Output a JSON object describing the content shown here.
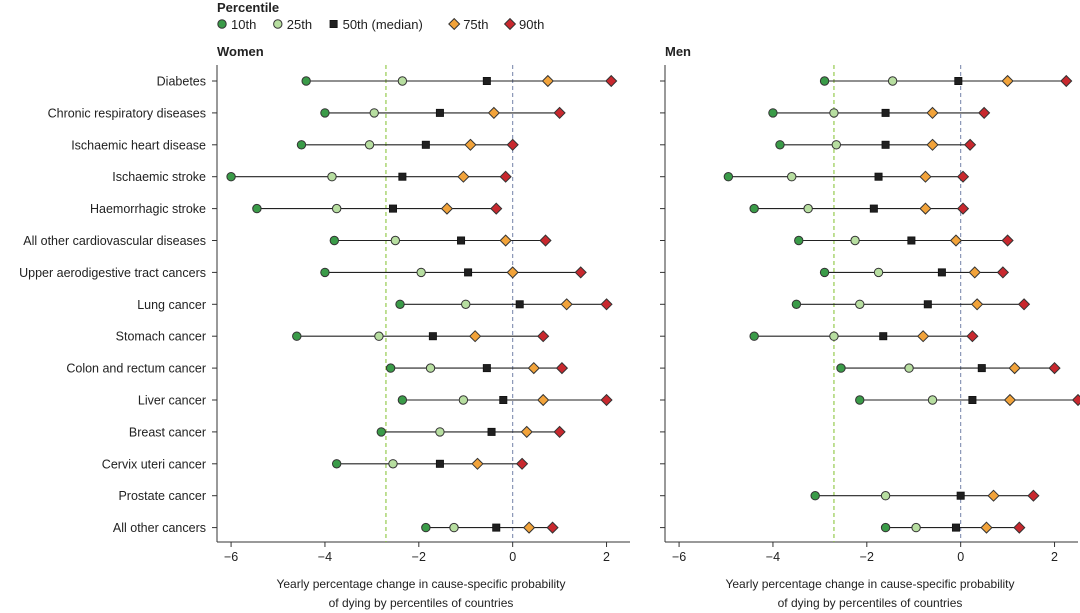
{
  "legend": {
    "title": "Percentile",
    "items": [
      {
        "key": "p10",
        "label": "10th",
        "shape": "circle",
        "color": "#3a9b48"
      },
      {
        "key": "p25",
        "label": "25th",
        "shape": "circle",
        "color": "#b7dea0"
      },
      {
        "key": "p50",
        "label": "50th (median)",
        "shape": "square",
        "color": "#1f1f1f"
      },
      {
        "key": "p75",
        "label": "75th",
        "shape": "diamond",
        "color": "#f2a33a"
      },
      {
        "key": "p90",
        "label": "90th",
        "shape": "diamond",
        "color": "#c8282e"
      }
    ]
  },
  "chart_data": {
    "type": "dot-range",
    "xlabel_line1": "Yearly percentage change in cause-specific probability",
    "xlabel_line2": "of dying by percentiles of countries",
    "xlim": [
      -6.3,
      2.5
    ],
    "xticks": [
      -6,
      -4,
      -2,
      0,
      2
    ],
    "xtick_labels": [
      "−6",
      "−4",
      "−2",
      "0",
      "2"
    ],
    "reference_lines": [
      {
        "x": 0,
        "style": "dashed",
        "color": "#7f8db0"
      },
      {
        "x": -2.7,
        "style": "dashed",
        "color": "#8cc63f"
      }
    ],
    "categories": [
      "Diabetes",
      "Chronic respiratory diseases",
      "Ischaemic heart disease",
      "Ischaemic stroke",
      "Haemorrhagic stroke",
      "All other cardiovascular diseases",
      "Upper aerodigestive tract cancers",
      "Lung cancer",
      "Stomach cancer",
      "Colon and rectum cancer",
      "Liver cancer",
      "Breast cancer",
      "Cervix uteri cancer",
      "Prostate cancer",
      "All other cancers"
    ],
    "panels": [
      {
        "title": "Women",
        "rows": [
          {
            "p10": -4.4,
            "p25": -2.35,
            "p50": -0.55,
            "p75": 0.75,
            "p90": 2.1
          },
          {
            "p10": -4.0,
            "p25": -2.95,
            "p50": -1.55,
            "p75": -0.4,
            "p90": 1.0
          },
          {
            "p10": -4.5,
            "p25": -3.05,
            "p50": -1.85,
            "p75": -0.9,
            "p90": 0.0
          },
          {
            "p10": -6.0,
            "p25": -3.85,
            "p50": -2.35,
            "p75": -1.05,
            "p90": -0.15
          },
          {
            "p10": -5.45,
            "p25": -3.75,
            "p50": -2.55,
            "p75": -1.4,
            "p90": -0.35
          },
          {
            "p10": -3.8,
            "p25": -2.5,
            "p50": -1.1,
            "p75": -0.15,
            "p90": 0.7
          },
          {
            "p10": -4.0,
            "p25": -1.95,
            "p50": -0.95,
            "p75": 0.0,
            "p90": 1.45
          },
          {
            "p10": -2.4,
            "p25": -1.0,
            "p50": 0.15,
            "p75": 1.15,
            "p90": 2.0
          },
          {
            "p10": -4.6,
            "p25": -2.85,
            "p50": -1.7,
            "p75": -0.8,
            "p90": 0.65
          },
          {
            "p10": -2.6,
            "p25": -1.75,
            "p50": -0.55,
            "p75": 0.45,
            "p90": 1.05
          },
          {
            "p10": -2.35,
            "p25": -1.05,
            "p50": -0.2,
            "p75": 0.65,
            "p90": 2.0
          },
          {
            "p10": -2.8,
            "p25": -1.55,
            "p50": -0.45,
            "p75": 0.3,
            "p90": 1.0
          },
          {
            "p10": -3.75,
            "p25": -2.55,
            "p50": -1.55,
            "p75": -0.75,
            "p90": 0.2
          },
          null,
          {
            "p10": -1.85,
            "p25": -1.25,
            "p50": -0.35,
            "p75": 0.35,
            "p90": 0.85
          }
        ]
      },
      {
        "title": "Men",
        "rows": [
          {
            "p10": -2.9,
            "p25": -1.45,
            "p50": -0.05,
            "p75": 1.0,
            "p90": 2.25
          },
          {
            "p10": -4.0,
            "p25": -2.7,
            "p50": -1.6,
            "p75": -0.6,
            "p90": 0.5
          },
          {
            "p10": -3.85,
            "p25": -2.65,
            "p50": -1.6,
            "p75": -0.6,
            "p90": 0.2
          },
          {
            "p10": -4.95,
            "p25": -3.6,
            "p50": -1.75,
            "p75": -0.75,
            "p90": 0.05
          },
          {
            "p10": -4.4,
            "p25": -3.25,
            "p50": -1.85,
            "p75": -0.75,
            "p90": 0.05
          },
          {
            "p10": -3.45,
            "p25": -2.25,
            "p50": -1.05,
            "p75": -0.1,
            "p90": 1.0
          },
          {
            "p10": -2.9,
            "p25": -1.75,
            "p50": -0.4,
            "p75": 0.3,
            "p90": 0.9
          },
          {
            "p10": -3.5,
            "p25": -2.15,
            "p50": -0.7,
            "p75": 0.35,
            "p90": 1.35
          },
          {
            "p10": -4.4,
            "p25": -2.7,
            "p50": -1.65,
            "p75": -0.8,
            "p90": 0.25
          },
          {
            "p10": -2.55,
            "p25": -1.1,
            "p50": 0.45,
            "p75": 1.15,
            "p90": 2.0
          },
          {
            "p10": -2.15,
            "p25": -0.6,
            "p50": 0.25,
            "p75": 1.05,
            "p90": 2.5
          },
          null,
          null,
          {
            "p10": -3.1,
            "p25": -1.6,
            "p50": 0.0,
            "p75": 0.7,
            "p90": 1.55
          },
          {
            "p10": -1.6,
            "p25": -0.95,
            "p50": -0.1,
            "p75": 0.55,
            "p90": 1.25
          }
        ]
      }
    ]
  }
}
